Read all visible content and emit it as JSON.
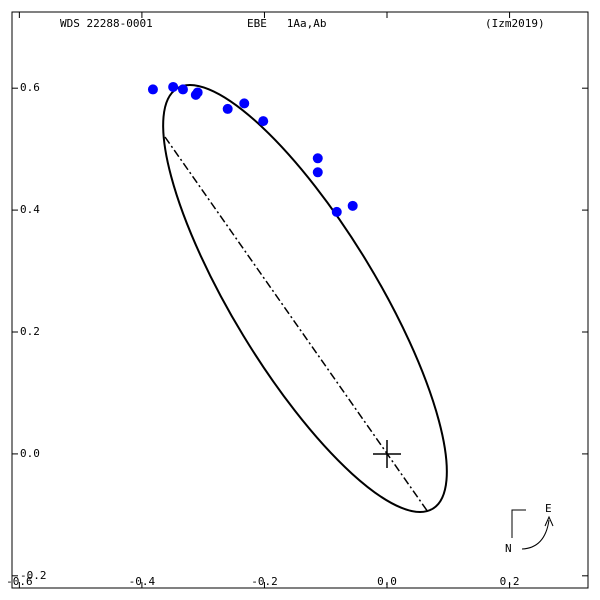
{
  "chart_data": {
    "type": "scatter",
    "header": {
      "left": "WDS 22288-0001",
      "center": "EBE   1Aa,Ab",
      "right": "(Izm2019)"
    },
    "compass": {
      "east": "E",
      "north": "N"
    },
    "series": [
      {
        "color": "#0000ff",
        "x": [
          -0.382,
          -0.349,
          -0.333,
          -0.312,
          -0.309,
          -0.26,
          -0.233,
          -0.202,
          -0.113,
          -0.113,
          -0.056,
          -0.082
        ],
        "values": [
          0.598,
          0.602,
          0.598,
          0.589,
          0.593,
          0.566,
          0.575,
          0.546,
          0.485,
          0.462,
          0.407,
          0.397
        ]
      }
    ],
    "xlim": [
      -0.612,
      0.328
    ],
    "ylim": [
      -0.22,
      0.725
    ],
    "xticks": [
      -0.6,
      -0.4,
      -0.2,
      {
        "value": 0,
        "label": "0.0"
      },
      0.2
    ],
    "yticks": [
      -0.2,
      {
        "value": 0,
        "label": "0.0"
      },
      0.2,
      0.4,
      0.6
    ]
  }
}
